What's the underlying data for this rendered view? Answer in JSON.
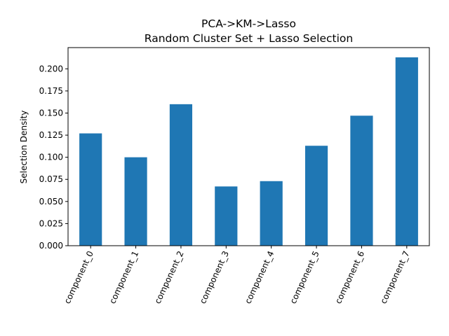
{
  "chart_data": {
    "type": "bar",
    "title_line1": "PCA->KM->Lasso",
    "title_line2": "Random Cluster Set + Lasso Selection",
    "xlabel": "",
    "ylabel": "Selection Density",
    "categories": [
      "component_0",
      "component_1",
      "component_2",
      "component_3",
      "component_4",
      "component_5",
      "component_6",
      "component_7"
    ],
    "values": [
      0.127,
      0.1,
      0.16,
      0.067,
      0.073,
      0.113,
      0.147,
      0.213
    ],
    "ylim": [
      0,
      0.224
    ],
    "yticks": [
      "0.000",
      "0.025",
      "0.050",
      "0.075",
      "0.100",
      "0.125",
      "0.150",
      "0.175",
      "0.200"
    ],
    "bar_color": "#1f77b4",
    "grid": false,
    "legend": "none"
  }
}
